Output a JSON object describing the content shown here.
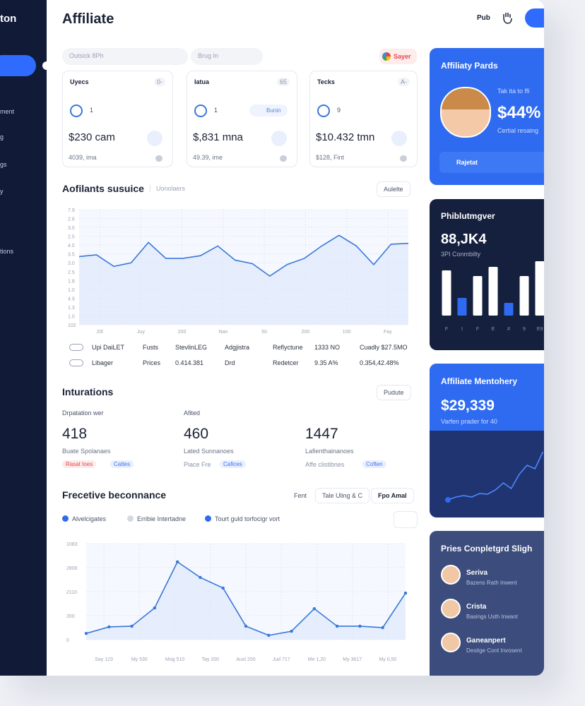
{
  "sidebar": {
    "brand": "ton",
    "items": [
      "ment",
      "g",
      "gs",
      "y",
      "tions"
    ]
  },
  "header": {
    "title": "Affiliate",
    "icon_label": "Pub"
  },
  "filters": {
    "search": "Outsick 8Ph",
    "range": "Brug In",
    "action": "Sayer"
  },
  "stat_cards": [
    {
      "title": "Uyecs",
      "tag": "0-",
      "badge": "1",
      "value": "$230 cam",
      "sub": "4039, ima"
    },
    {
      "title": "Iatua",
      "tag": "65",
      "badge": "1",
      "chip": "Bunin",
      "value": "$,831 mna",
      "sub": "49.39, ime"
    },
    {
      "title": "Tecks",
      "tag": "A-",
      "badge": "9",
      "value": "$10.432 tmn",
      "sub": "$128, Fint"
    }
  ],
  "affiliates": {
    "title": "Aofilants susuice",
    "subtitle": "Uonolaers",
    "menu": "Aulelte",
    "chart": {
      "type": "line",
      "color": "#3a78d8",
      "ylim": [
        0,
        13
      ],
      "yticks": [
        {
          "value": 0,
          "label": "102"
        },
        {
          "value": 1,
          "label": "1.0"
        },
        {
          "value": 2,
          "label": "1.3"
        },
        {
          "value": 3,
          "label": "4.9"
        },
        {
          "value": 4,
          "label": "1.0"
        },
        {
          "value": 5,
          "label": "1.8"
        },
        {
          "value": 6,
          "label": "2.5"
        },
        {
          "value": 7,
          "label": "3.0"
        },
        {
          "value": 8,
          "label": "3.5"
        },
        {
          "value": 9,
          "label": "4.0"
        },
        {
          "value": 10,
          "label": "2.5"
        },
        {
          "value": 11,
          "label": "3.0"
        },
        {
          "value": 12,
          "label": "2.8"
        },
        {
          "value": 13,
          "label": "7.9"
        }
      ],
      "x_labels": [
        "20l",
        "Juy",
        "200",
        "Nan",
        "50",
        "200",
        "100",
        "Fay"
      ],
      "values": [
        7.7,
        7.9,
        6.6,
        7.0,
        9.3,
        7.5,
        7.5,
        7.8,
        8.9,
        7.3,
        6.9,
        5.5,
        6.8,
        7.5,
        8.9,
        10.1,
        8.9,
        6.8,
        9.1,
        9.2
      ]
    },
    "table": {
      "rows": [
        [
          "Upi DaiLET",
          "Fusts",
          "StevlinLEG",
          "Adgjistra",
          "Reflyctune",
          "1333 NO",
          "Cuadly $27.5MO"
        ],
        [
          "Libager",
          "Prices",
          "0.414.381",
          "Drd",
          "Redetcer",
          "9.35 A%",
          "0.354,42.48%"
        ]
      ]
    }
  },
  "interactions": {
    "title": "Inturations",
    "menu": "Pudute",
    "metrics": [
      {
        "label": "Drpatation wer",
        "value": 418,
        "caption": "Buate Spolanaes",
        "tags": [
          {
            "text": "Rasat toes",
            "color": "#e5484d"
          },
          {
            "text": "Cattes",
            "color": "#3b6ff5"
          }
        ]
      },
      {
        "label": "Afited",
        "value": 460,
        "caption": "Lated Sunnanoes",
        "note": "Piace Fre",
        "tags": [
          {
            "text": "Cafices",
            "color": "#3b6ff5"
          }
        ]
      },
      {
        "value": 1447,
        "caption": "Lafienthainanoes",
        "note": "Affe clistibnes",
        "tags": [
          {
            "text": "Coften",
            "color": "#3b6ff5"
          }
        ]
      }
    ]
  },
  "performance": {
    "title": "Frecetive beconnance",
    "filter": "Fent",
    "range": "Tale Uling & C",
    "export": "Fpo Amal",
    "legend": [
      {
        "name": "Alvelcigates",
        "color": "#2f6bf0"
      },
      {
        "name": "Erribie Intertadne",
        "color": "#d5d9e2"
      },
      {
        "name": "Tourt guld torfocigr vort",
        "color": "#2f6bf0"
      }
    ],
    "chart": {
      "type": "line",
      "color": "#3a78d8",
      "ylim": [
        0,
        4
      ],
      "yticks": [
        0,
        {
          "value": 1,
          "label": "200"
        },
        {
          "value": 2,
          "label": "2110"
        },
        {
          "value": 3,
          "label": "2800"
        },
        {
          "value": 4,
          "label": "1083"
        }
      ],
      "x_labels": [
        "Say 123",
        "My 530",
        "Mog 510",
        "Tay 200",
        "Ausl 200",
        "Jud 717",
        "Me 1,20",
        "My 3617",
        "My 0,50"
      ],
      "values": [
        0.26,
        0.53,
        0.56,
        1.32,
        3.24,
        2.59,
        2.15,
        0.56,
        0.18,
        0.35,
        1.29,
        0.56,
        0.56,
        0.5,
        1.94
      ]
    }
  },
  "side_cards": {
    "payouts": {
      "title": "Affiliaty Pards",
      "text": "Tak ita to ffi",
      "value": "$44%",
      "caption": "Certial resaing",
      "button": "Rajetat"
    },
    "growth": {
      "title": "Phiblutmgver",
      "value": "88,JK4",
      "caption": "3PI Conmbilty",
      "bars": {
        "values": [
          64,
          25,
          56,
          69,
          18,
          56,
          77
        ],
        "colors": [
          "#ffffff",
          "#2f6bf0",
          "#ffffff",
          "#ffffff",
          "#2f6bf0",
          "#ffffff",
          "#ffffff"
        ],
        "labels": [
          "F",
          "I",
          "F",
          "E",
          "#",
          "9",
          "E9"
        ]
      }
    },
    "mentorship": {
      "title": "Affiliate Mentohery",
      "value": "$29,339",
      "caption": "Varfen prader for 40",
      "trend": [
        16,
        20,
        22,
        20,
        25,
        24,
        30,
        40,
        32,
        52,
        65,
        60,
        84
      ]
    },
    "completed": {
      "title": "Pries Conpletgrd Sligh",
      "people": [
        {
          "name": "Serivа",
          "role": "Bazens Rath Inwent"
        },
        {
          "name": "Crista",
          "role": "Basings Usth Inwant"
        },
        {
          "name": "Ganeanpert",
          "role": "Desitge Cont Invosent"
        }
      ]
    }
  }
}
